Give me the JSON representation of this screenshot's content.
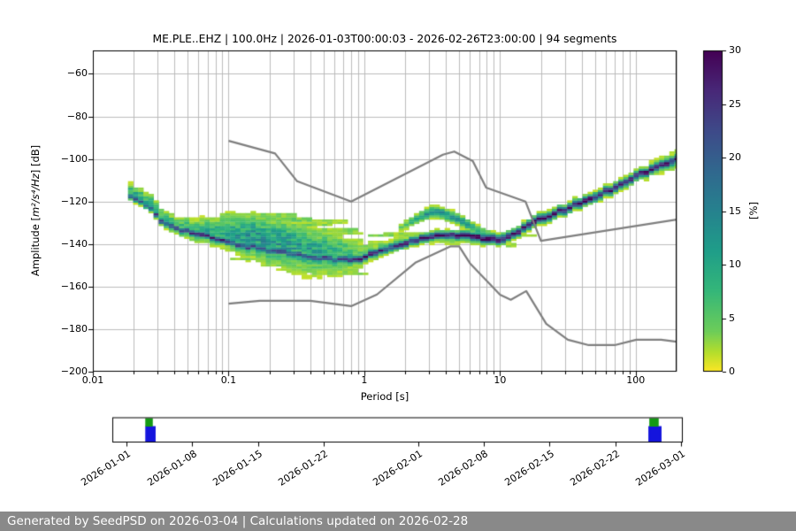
{
  "title": "ME.PLE..EHZ | 100.0Hz | 2026-01-03T00:00:03 - 2026-02-26T23:00:00 | 94 segments",
  "footer": {
    "text": "Generated by SeedPSD on 2026-03-04 | Calculations updated on 2026-02-28",
    "bg_color": "#898989",
    "text_color": "#ffffff"
  },
  "colors": {
    "background": "#ffffff",
    "gridline": "#b6b6b6",
    "noise_model_line": "#7f7f7f",
    "axis": "#000000",
    "timeline_green": "#149a14",
    "timeline_blue": "#1414dd"
  },
  "chart_data": {
    "type": "heatmap",
    "subtype": "seismic PPSD probability density (period vs amplitude, colored by probability %)",
    "title": "ME.PLE..EHZ | 100.0Hz | 2026-01-03T00:00:03 - 2026-02-26T23:00:00 | 94 segments",
    "xlabel": "Period [s]",
    "ylabel": "Amplitude [m²/s⁴/Hz] [dB]",
    "ylabel_parts": {
      "prefix": "Amplitude [",
      "math": "m²/s⁴/Hz",
      "suffix": "] [dB]"
    },
    "xscale": "log",
    "xlim": [
      0.01,
      200
    ],
    "ylim": [
      -200,
      -49
    ],
    "grid": "vertical major+minor log gridlines, horizontal major gridlines",
    "xticks": {
      "values": [
        0.01,
        0.1,
        1,
        10,
        100
      ],
      "labels": [
        "0.01",
        "0.1",
        "1",
        "10",
        "100"
      ]
    },
    "yticks": {
      "values": [
        -60,
        -80,
        -100,
        -120,
        -140,
        -160,
        -180,
        -200
      ],
      "labels": [
        "−60",
        "−80",
        "−100",
        "−120",
        "−140",
        "−160",
        "−180",
        "−200"
      ]
    },
    "colorbar": {
      "label": "[%]",
      "min": 0,
      "max": 30,
      "ticks": [
        0,
        5,
        10,
        15,
        20,
        25,
        30
      ],
      "colormap": "viridis reversed (0% = yellow, 30% = dark purple)"
    },
    "psd_density": {
      "description": "Probability density ridge of the PPSD. profile columns: period_s, mode_db, core_peak_pct, core_sigma_db, wide_peak_pct, wide_offset_db, wide_sigma_up_db, wide_sigma_down_db. Mesh cells are 1/8-octave wide and 1 dB tall.",
      "profile": [
        [
          0.019,
          -116.8,
          20,
          0.9,
          9,
          2.0,
          2.2,
          1.6
        ],
        [
          0.023,
          -120.8,
          22,
          0.9,
          9,
          2.0,
          2.4,
          1.6
        ],
        [
          0.028,
          -124.5,
          23,
          0.9,
          9,
          2.0,
          2.4,
          1.8
        ],
        [
          0.032,
          -129.3,
          23,
          0.9,
          9,
          1.5,
          2.4,
          2.0
        ],
        [
          0.042,
          -132.3,
          24,
          0.9,
          9,
          1.2,
          2.6,
          2.2
        ],
        [
          0.055,
          -134.8,
          25,
          1.0,
          9,
          1.0,
          3.0,
          2.6
        ],
        [
          0.075,
          -137.0,
          25,
          1.0,
          9,
          2.0,
          4.2,
          3.2
        ],
        [
          0.1,
          -139.3,
          24,
          1.0,
          10,
          4.0,
          5.0,
          4.2
        ],
        [
          0.15,
          -141.5,
          23,
          1.0,
          12,
          5.0,
          5.5,
          5.5
        ],
        [
          0.22,
          -143.2,
          22,
          1.0,
          12,
          5.0,
          5.5,
          6.5
        ],
        [
          0.32,
          -144.8,
          22,
          1.0,
          11,
          4.5,
          5.5,
          7.0
        ],
        [
          0.47,
          -146.3,
          22,
          1.0,
          10,
          4.0,
          5.0,
          6.5
        ],
        [
          0.68,
          -147.3,
          23,
          1.0,
          8,
          3.0,
          4.5,
          5.5
        ],
        [
          0.92,
          -147.3,
          25,
          1.1,
          6,
          1.5,
          3.5,
          4.0
        ],
        [
          1.15,
          -144.6,
          26,
          1.1,
          5,
          1.0,
          3.0,
          2.8
        ],
        [
          1.5,
          -142.0,
          26,
          1.1,
          4.5,
          0.5,
          2.6,
          2.2
        ],
        [
          2.2,
          -138.8,
          27,
          1.1,
          4,
          0,
          2.2,
          2.0
        ],
        [
          3.2,
          -136.3,
          27,
          1.1,
          4,
          0,
          2.0,
          2.2
        ],
        [
          4.5,
          -135.8,
          28,
          1.1,
          5,
          -0.5,
          1.8,
          2.4
        ],
        [
          6.0,
          -136.3,
          29,
          1.2,
          5,
          -0.5,
          1.8,
          2.2
        ],
        [
          8.0,
          -137.3,
          30,
          1.3,
          6,
          0,
          1.8,
          1.8
        ],
        [
          10.5,
          -137.6,
          30,
          1.3,
          6,
          0,
          1.8,
          1.8
        ],
        [
          12.0,
          -136.5,
          30,
          1.2,
          6,
          0,
          1.8,
          1.8
        ],
        [
          14.0,
          -133.8,
          29,
          1.2,
          6,
          0,
          1.8,
          1.8
        ],
        [
          17.0,
          -130.5,
          29,
          1.2,
          6,
          0,
          1.8,
          1.8
        ],
        [
          20.0,
          -128.3,
          29,
          1.2,
          6,
          0,
          1.8,
          1.8
        ],
        [
          30.0,
          -123.8,
          28,
          1.2,
          6,
          0,
          1.8,
          1.8
        ],
        [
          45.0,
          -119.0,
          28,
          1.2,
          6,
          0,
          1.8,
          1.8
        ],
        [
          65.0,
          -114.5,
          28,
          1.2,
          6,
          0,
          1.8,
          1.8
        ],
        [
          95.0,
          -108.8,
          28,
          1.2,
          6,
          0,
          1.9,
          1.9
        ],
        [
          130.0,
          -105.0,
          28,
          1.2,
          6.5,
          0,
          2.0,
          2.0
        ],
        [
          160.0,
          -102.7,
          28,
          1.2,
          7,
          0,
          2.2,
          2.2
        ],
        [
          200.0,
          -100.2,
          28,
          1.2,
          7,
          0,
          2.4,
          2.4
        ]
      ],
      "secondary_branch_columns": [
        "period_s",
        "mode_db",
        "peak_pct",
        "sigma_db"
      ],
      "secondary_branch": [
        [
          1.7,
          -133.5,
          3,
          1.2
        ],
        [
          2.3,
          -129.2,
          8,
          1.3
        ],
        [
          2.8,
          -126.2,
          12,
          1.4
        ],
        [
          3.3,
          -124.6,
          14,
          1.5
        ],
        [
          4.0,
          -126.0,
          13,
          1.5
        ],
        [
          5.0,
          -128.6,
          12,
          1.5
        ],
        [
          6.0,
          -131.5,
          10,
          1.4
        ],
        [
          7.0,
          -133.8,
          8,
          1.3
        ],
        [
          8.6,
          -135.8,
          6,
          1.2
        ]
      ],
      "streaks_columns": [
        "period_start_s",
        "period_end_s",
        "db",
        "pct"
      ],
      "streaks": [
        [
          0.085,
          0.3,
          -126.5,
          3
        ],
        [
          0.09,
          0.38,
          -128.5,
          4
        ],
        [
          0.1,
          0.55,
          -131,
          3.5
        ],
        [
          0.13,
          0.85,
          -133.5,
          3
        ],
        [
          0.17,
          0.6,
          -136,
          3
        ],
        [
          0.22,
          0.95,
          -138.5,
          2.5
        ],
        [
          0.3,
          1.0,
          -141,
          2.5
        ],
        [
          0.1,
          0.42,
          -147,
          3
        ],
        [
          0.16,
          0.72,
          -150,
          3
        ],
        [
          0.26,
          0.85,
          -152.5,
          2.5
        ],
        [
          0.42,
          0.98,
          -154,
          2.5
        ],
        [
          0.35,
          0.75,
          -129.5,
          2.5
        ],
        [
          0.5,
          0.95,
          -135,
          2.5
        ],
        [
          1.05,
          3.3,
          -136.4,
          3
        ],
        [
          1.35,
          2.7,
          -134.9,
          2.5
        ],
        [
          10.5,
          13,
          -140.5,
          2.5
        ],
        [
          14,
          17.5,
          -135.6,
          2.5
        ]
      ]
    },
    "noise_models": {
      "name": "Peterson new high/low noise models (gray lines)",
      "high": [
        [
          0.1,
          -91.5
        ],
        [
          0.22,
          -97.4
        ],
        [
          0.32,
          -110.5
        ],
        [
          0.8,
          -120.0
        ],
        [
          3.8,
          -98.0
        ],
        [
          4.6,
          -96.5
        ],
        [
          6.3,
          -101.0
        ],
        [
          7.9,
          -113.5
        ],
        [
          15.4,
          -120.0
        ],
        [
          20.0,
          -138.5
        ],
        [
          200.0,
          -128.5
        ]
      ],
      "low": [
        [
          0.1,
          -168.0
        ],
        [
          0.17,
          -166.7
        ],
        [
          0.4,
          -166.7
        ],
        [
          0.8,
          -169.2
        ],
        [
          1.24,
          -163.7
        ],
        [
          2.4,
          -148.6
        ],
        [
          4.3,
          -141.1
        ],
        [
          5.0,
          -141.1
        ],
        [
          6.0,
          -149.0
        ],
        [
          10.0,
          -163.8
        ],
        [
          12.0,
          -166.2
        ],
        [
          15.6,
          -162.1
        ],
        [
          21.9,
          -177.5
        ],
        [
          31.6,
          -185.0
        ],
        [
          45.0,
          -187.5
        ],
        [
          70.0,
          -187.5
        ],
        [
          101.0,
          -185.0
        ],
        [
          154.0,
          -185.0
        ],
        [
          200.0,
          -185.9
        ]
      ]
    }
  },
  "timeline": {
    "description": "Data availability bar below main plot; green = top stripe, blue = bottom stripe",
    "tick_labels": [
      "2026-01-01",
      "2026-01-08",
      "2026-01-15",
      "2026-01-22",
      "2026-02-01",
      "2026-02-08",
      "2026-02-15",
      "2026-02-22",
      "2026-03-01"
    ],
    "day0": "2026-01-01",
    "markers": [
      {
        "name": "coverage-start",
        "green": {
          "start_day": 2.0,
          "end_day": 2.8
        },
        "blue": {
          "start_day": 2.0,
          "end_day": 3.1
        }
      },
      {
        "name": "coverage-end",
        "green": {
          "start_day": 55.6,
          "end_day": 56.6
        },
        "blue": {
          "start_day": 55.5,
          "end_day": 56.9
        }
      }
    ]
  }
}
